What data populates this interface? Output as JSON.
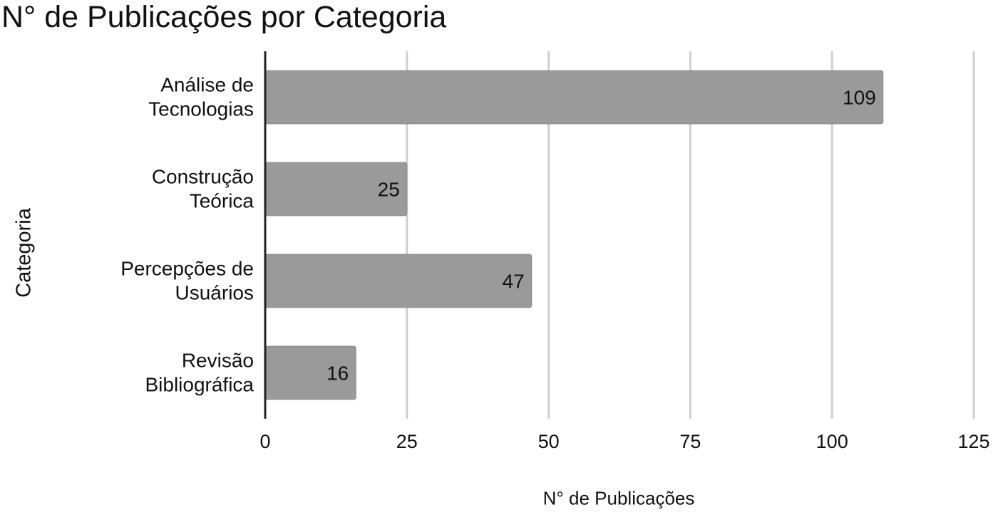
{
  "chart_data": {
    "type": "bar",
    "orientation": "horizontal",
    "title": "N° de Publicações por Categoria",
    "xlabel": "N° de Publicações",
    "ylabel": "Categoria",
    "categories": [
      [
        "Análise de",
        "Tecnologias"
      ],
      [
        "Construção",
        "Teórica"
      ],
      [
        "Percepções de",
        "Usuários"
      ],
      [
        "Revisão",
        "Bibliográfica"
      ]
    ],
    "values": [
      109,
      25,
      47,
      16
    ],
    "value_labels": [
      "109",
      "25",
      "47",
      "16"
    ],
    "xlim": [
      0,
      125
    ],
    "xticks": [
      0,
      25,
      50,
      75,
      100,
      125
    ],
    "xtick_labels": [
      "0",
      "25",
      "50",
      "75",
      "100",
      "125"
    ],
    "grid": "vertical",
    "bar_color": "#9a9a9a",
    "grid_color": "#cfcfcf",
    "axis_color": "#222222"
  }
}
